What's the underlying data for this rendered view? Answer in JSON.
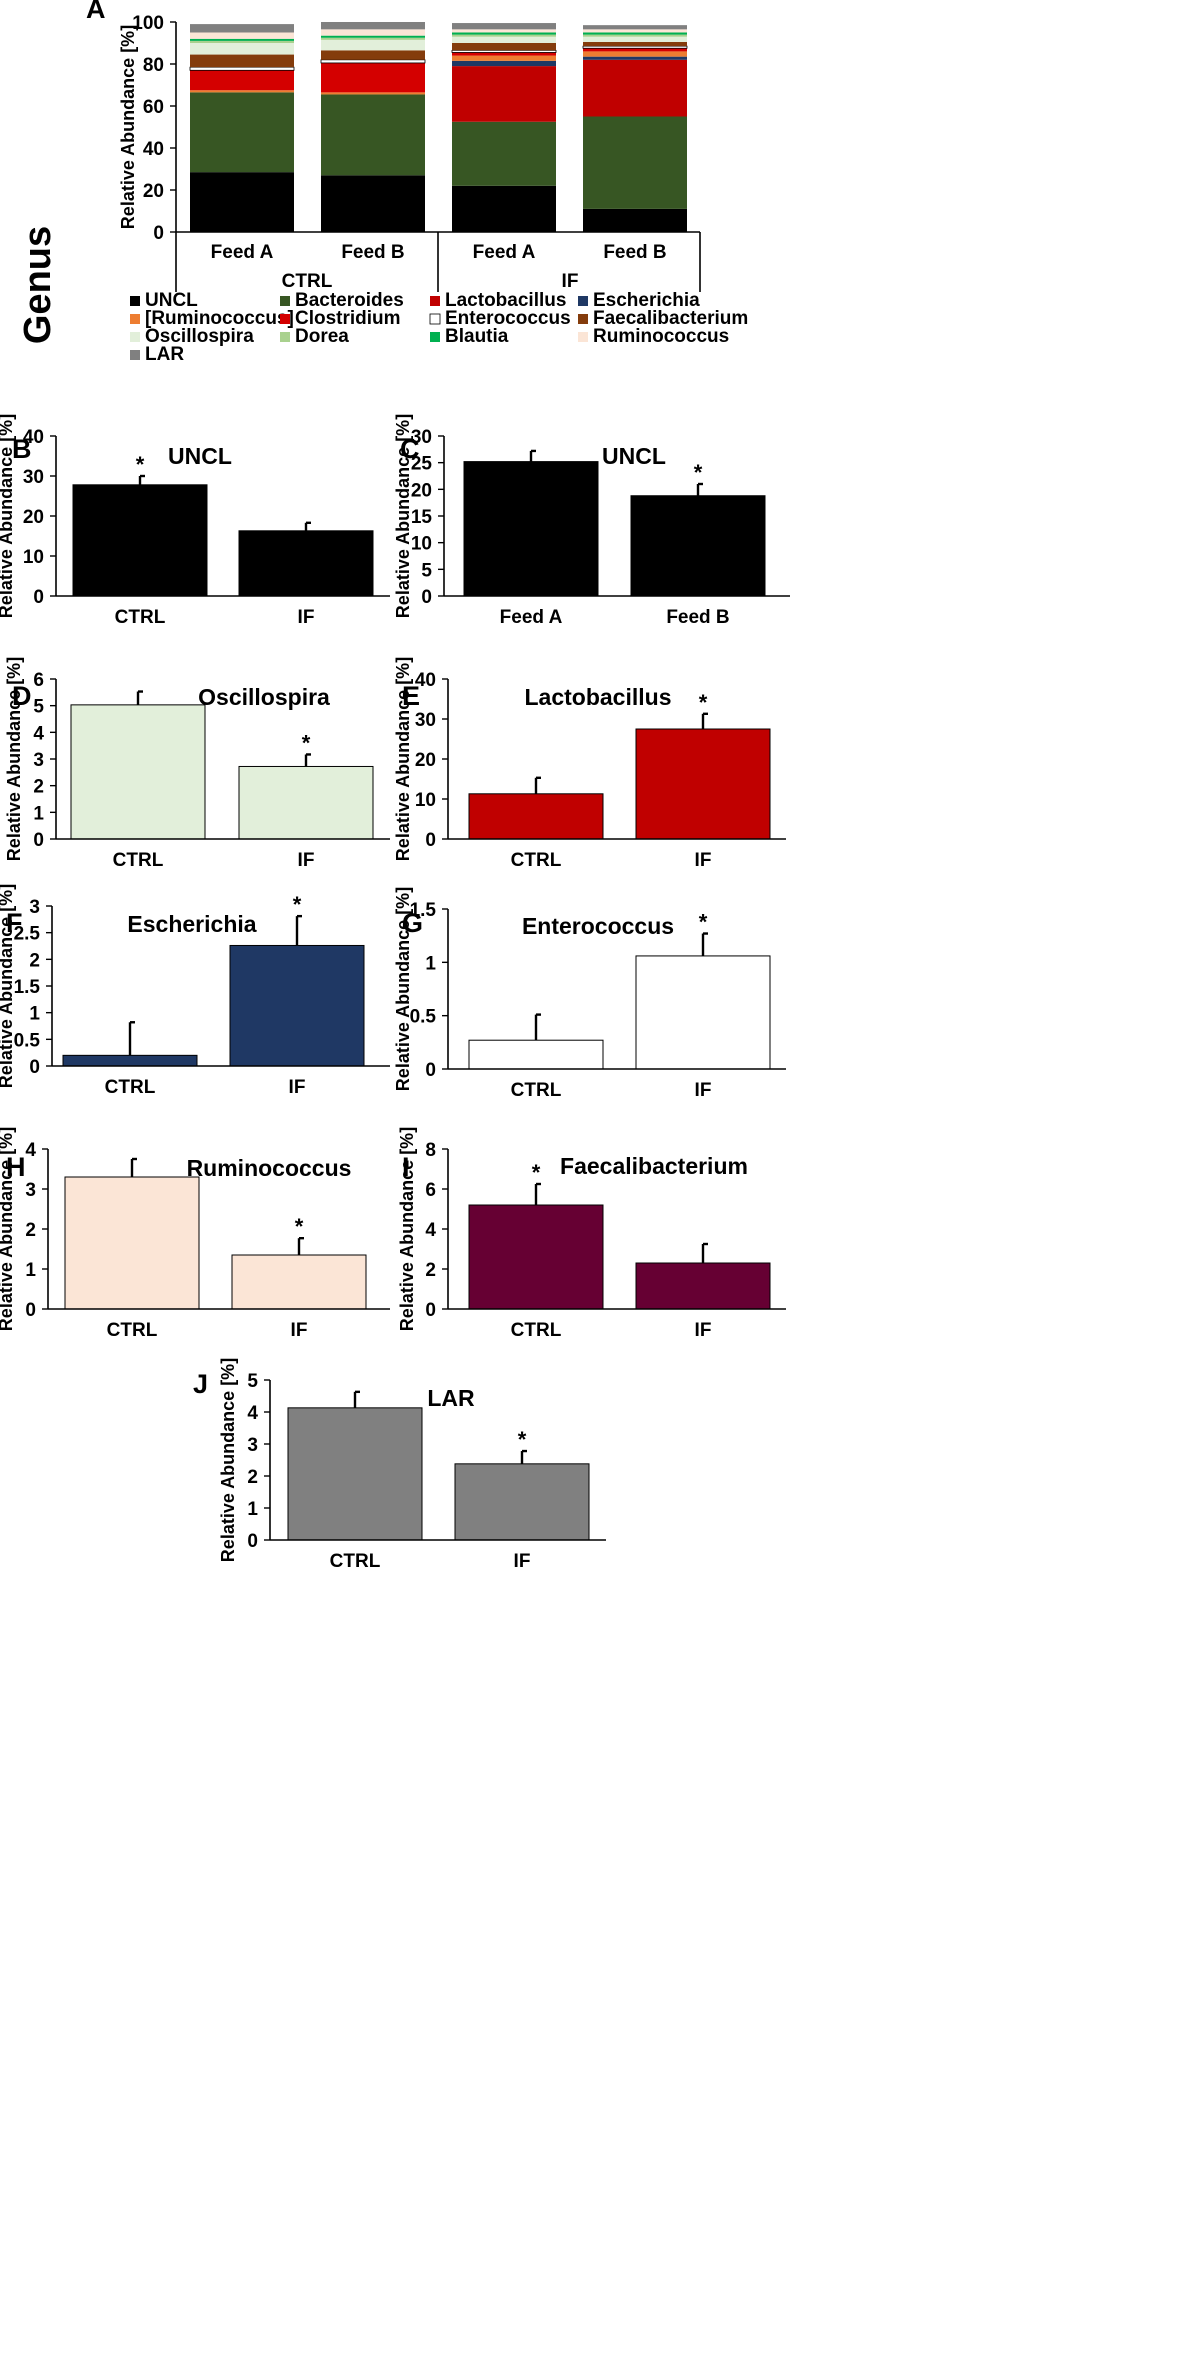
{
  "figure": {
    "side_label": "Genus"
  },
  "chart_data": [
    {
      "id": "A",
      "type": "bar",
      "stacked": true,
      "panel_label": "A",
      "title": "",
      "ylabel": "Relative Abundance [%]",
      "ylim": [
        0,
        100
      ],
      "yticks": [
        0,
        20,
        40,
        60,
        80,
        100
      ],
      "categories": [
        "Feed A",
        "Feed B",
        "Feed A",
        "Feed B"
      ],
      "groups": [
        {
          "label": "CTRL",
          "span": [
            0,
            1
          ]
        },
        {
          "label": "IF",
          "span": [
            2,
            3
          ]
        }
      ],
      "series": [
        {
          "name": "UNCL",
          "color": "#000000",
          "values": [
            28.5,
            27,
            22,
            11
          ]
        },
        {
          "name": "Bacteroides",
          "color": "#375623",
          "values": [
            38,
            38.5,
            30.5,
            44
          ]
        },
        {
          "name": "Lactobacillus",
          "color": "#c00000",
          "values": [
            0,
            0,
            26.5,
            27
          ]
        },
        {
          "name": "Escherichia",
          "color": "#1f3864",
          "values": [
            0,
            0,
            2.5,
            1.5
          ]
        },
        {
          "name": "[Ruminococcus]",
          "color": "#ed7d31",
          "values": [
            1,
            1,
            2.5,
            2.5
          ]
        },
        {
          "name": "Clostridium",
          "color": "#d40000",
          "values": [
            9.5,
            14,
            1.5,
            1.5
          ]
        },
        {
          "name": "Enterococcus",
          "color": "#ffffff",
          "values": [
            1.5,
            1.5,
            1,
            1
          ]
        },
        {
          "name": "Faecalibacterium",
          "color": "#843c0c",
          "values": [
            6,
            4.5,
            3.5,
            2
          ]
        },
        {
          "name": "Oscillospira",
          "color": "#e2efda",
          "values": [
            5.5,
            5,
            3,
            2.5
          ]
        },
        {
          "name": "Dorea",
          "color": "#a9d18e",
          "values": [
            1,
            1,
            1,
            1
          ]
        },
        {
          "name": "Blautia",
          "color": "#00b050",
          "values": [
            1,
            1,
            1,
            1
          ]
        },
        {
          "name": "Ruminococcus",
          "color": "#fbe5d6",
          "values": [
            3,
            3,
            1.5,
            1.5
          ]
        },
        {
          "name": "LAR",
          "color": "#808080",
          "values": [
            4,
            3.5,
            3,
            2
          ]
        }
      ],
      "legend": [
        "UNCL",
        "Bacteroides",
        "Lactobacillus",
        "Escherichia",
        "[Ruminococcus]",
        "Clostridium",
        "Enterococcus",
        "Faecalibacterium",
        "Oscillospira",
        "Dorea",
        "Blautia",
        "Ruminococcus",
        "LAR"
      ]
    },
    {
      "id": "B",
      "type": "bar",
      "panel_label": "B",
      "title": "UNCL",
      "ylabel": "Relative Abundance [%]",
      "ylim": [
        0,
        40
      ],
      "yticks": [
        0,
        10,
        20,
        30,
        40
      ],
      "categories": [
        "CTRL",
        "IF"
      ],
      "values": [
        27.8,
        16.3
      ],
      "errors": [
        2.2,
        2.0
      ],
      "significant": [
        true,
        false
      ],
      "significance_mark": "*",
      "color": "#000000"
    },
    {
      "id": "C",
      "type": "bar",
      "panel_label": "C",
      "title": "UNCL",
      "ylabel": "Relative Abundance [%]",
      "ylim": [
        0,
        30
      ],
      "yticks": [
        0,
        5,
        10,
        15,
        20,
        25,
        30
      ],
      "categories": [
        "Feed A",
        "Feed B"
      ],
      "values": [
        25.2,
        18.8
      ],
      "errors": [
        2.0,
        2.2
      ],
      "significant": [
        false,
        true
      ],
      "significance_mark": "*",
      "color": "#000000"
    },
    {
      "id": "D",
      "type": "bar",
      "panel_label": "D",
      "title": "Oscillospira",
      "ylabel": "Relative Abundance [%]",
      "ylim": [
        0,
        6
      ],
      "yticks": [
        0,
        1,
        2,
        3,
        4,
        5,
        6
      ],
      "categories": [
        "CTRL",
        "IF"
      ],
      "values": [
        5.03,
        2.72
      ],
      "errors": [
        0.5,
        0.45
      ],
      "significant": [
        false,
        true
      ],
      "significance_mark": "*",
      "color": "#e2efda"
    },
    {
      "id": "E",
      "type": "bar",
      "panel_label": "E",
      "title": "Lactobacillus",
      "ylabel": "Relative Abundance [%]",
      "ylim": [
        0,
        40
      ],
      "yticks": [
        0,
        10,
        20,
        30,
        40
      ],
      "categories": [
        "CTRL",
        "IF"
      ],
      "values": [
        11.3,
        27.5
      ],
      "errors": [
        4.0,
        3.8
      ],
      "significant": [
        false,
        true
      ],
      "significance_mark": "*",
      "color": "#c00000"
    },
    {
      "id": "F",
      "type": "bar",
      "panel_label": "F",
      "title": "Escherichia",
      "ylabel": "Relative Abundance [%]",
      "ylim": [
        0,
        3
      ],
      "yticks": [
        0,
        0.5,
        1,
        1.5,
        2,
        2.5,
        3
      ],
      "categories": [
        "CTRL",
        "IF"
      ],
      "values": [
        0.2,
        2.26
      ],
      "errors": [
        0.62,
        0.55
      ],
      "significant": [
        false,
        true
      ],
      "significance_mark": "*",
      "color": "#1f3864"
    },
    {
      "id": "G",
      "type": "bar",
      "panel_label": "G",
      "title": "Enterococcus",
      "ylabel": "Relative Abundance [%]",
      "ylim": [
        0,
        1.5
      ],
      "yticks": [
        0,
        0.5,
        1,
        1.5
      ],
      "categories": [
        "CTRL",
        "IF"
      ],
      "values": [
        0.27,
        1.06
      ],
      "errors": [
        0.24,
        0.21
      ],
      "significant": [
        false,
        true
      ],
      "significance_mark": "*",
      "color": "#ffffff"
    },
    {
      "id": "H",
      "type": "bar",
      "panel_label": "H",
      "title": "Ruminococcus",
      "ylabel": "Relative Abundance [%]",
      "ylim": [
        0,
        4
      ],
      "yticks": [
        0,
        1,
        2,
        3,
        4
      ],
      "categories": [
        "CTRL",
        "IF"
      ],
      "values": [
        3.3,
        1.35
      ],
      "errors": [
        0.45,
        0.42
      ],
      "significant": [
        false,
        true
      ],
      "significance_mark": "*",
      "color": "#fbe5d6"
    },
    {
      "id": "I",
      "type": "bar",
      "panel_label": "I",
      "title": "Faecalibacterium",
      "ylabel": "Relative Abundance [%]",
      "ylim": [
        0,
        8
      ],
      "yticks": [
        0,
        2,
        4,
        6,
        8
      ],
      "categories": [
        "CTRL",
        "IF"
      ],
      "values": [
        5.2,
        2.3
      ],
      "errors": [
        1.05,
        0.95
      ],
      "significant": [
        true,
        false
      ],
      "significance_mark": "*",
      "color": "#660033"
    },
    {
      "id": "J",
      "type": "bar",
      "panel_label": "J",
      "title": "LAR",
      "ylabel": "Relative Abundance [%]",
      "ylim": [
        0,
        5
      ],
      "yticks": [
        0,
        1,
        2,
        3,
        4,
        5
      ],
      "categories": [
        "CTRL",
        "IF"
      ],
      "values": [
        4.13,
        2.38
      ],
      "errors": [
        0.5,
        0.4
      ],
      "significant": [
        false,
        true
      ],
      "significance_mark": "*",
      "color": "#808080"
    }
  ]
}
